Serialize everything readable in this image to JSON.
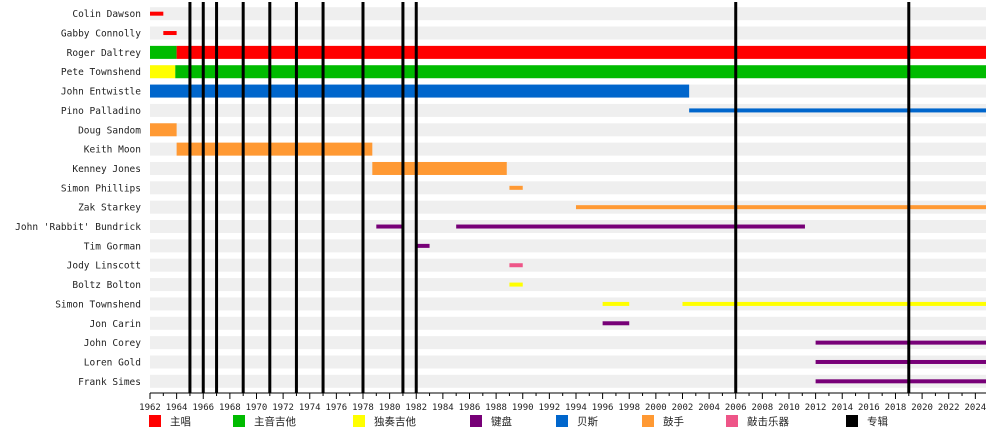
{
  "chart_data": {
    "type": "timeline",
    "x_range": [
      1962,
      2024.8
    ],
    "tick_years": [
      1962,
      1964,
      1966,
      1968,
      1970,
      1972,
      1974,
      1976,
      1978,
      1980,
      1982,
      1984,
      1986,
      1988,
      1990,
      1992,
      1994,
      1996,
      1998,
      2000,
      2002,
      2004,
      2006,
      2008,
      2010,
      2012,
      2014,
      2016,
      2018,
      2020,
      2022,
      2024
    ],
    "role_colors": {
      "lead_vocals": "#ff0000",
      "rhythm_guitar": "#00bb00",
      "lead_guitar": "#ffff00",
      "keyboards": "#770077",
      "bass": "#0066cc",
      "drums": "#ff9933",
      "percussion": "#ee5588",
      "albums": "#000000"
    },
    "legend": [
      {
        "role": "lead_vocals",
        "label": "主唱"
      },
      {
        "role": "rhythm_guitar",
        "label": "主音吉他"
      },
      {
        "role": "lead_guitar",
        "label": "独奏吉他"
      },
      {
        "role": "keyboards",
        "label": "键盘"
      },
      {
        "role": "bass",
        "label": "贝斯"
      },
      {
        "role": "drums",
        "label": "鼓手"
      },
      {
        "role": "percussion",
        "label": "敲击乐器"
      },
      {
        "role": "albums",
        "label": "专辑"
      }
    ],
    "album_years": [
      1965.0,
      1966.0,
      1967.0,
      1969.0,
      1971.0,
      1973.0,
      1975.0,
      1978.0,
      1981.0,
      1982.0,
      2006.0,
      2019.0
    ],
    "members": [
      {
        "name": "Colin Dawson",
        "bars": [
          {
            "start": 1962.0,
            "end": 1963.0,
            "role": "lead_vocals",
            "thick": false
          }
        ]
      },
      {
        "name": "Gabby Connolly",
        "bars": [
          {
            "start": 1963.0,
            "end": 1964.0,
            "role": "lead_vocals",
            "thick": false
          }
        ]
      },
      {
        "name": "Roger Daltrey",
        "bars": [
          {
            "start": 1962.0,
            "end": 1964.0,
            "role": "rhythm_guitar",
            "thick": true
          },
          {
            "start": 1964.0,
            "end": 2024.8,
            "role": "lead_vocals",
            "thick": true
          }
        ]
      },
      {
        "name": "Pete Townshend",
        "bars": [
          {
            "start": 1962.0,
            "end": 1963.9,
            "role": "lead_guitar",
            "thick": true
          },
          {
            "start": 1963.9,
            "end": 2024.8,
            "role": "rhythm_guitar",
            "thick": true
          }
        ]
      },
      {
        "name": "John Entwistle",
        "bars": [
          {
            "start": 1962.0,
            "end": 2002.5,
            "role": "bass",
            "thick": true
          }
        ]
      },
      {
        "name": "Pino Palladino",
        "bars": [
          {
            "start": 2002.5,
            "end": 2024.8,
            "role": "bass",
            "thick": false
          }
        ]
      },
      {
        "name": "Doug Sandom",
        "bars": [
          {
            "start": 1962.0,
            "end": 1964.0,
            "role": "drums",
            "thick": true
          }
        ]
      },
      {
        "name": "Keith Moon",
        "bars": [
          {
            "start": 1964.0,
            "end": 1978.7,
            "role": "drums",
            "thick": true
          }
        ]
      },
      {
        "name": "Kenney Jones",
        "bars": [
          {
            "start": 1978.7,
            "end": 1988.8,
            "role": "drums",
            "thick": true
          }
        ]
      },
      {
        "name": "Simon Phillips",
        "bars": [
          {
            "start": 1989.0,
            "end": 1990.0,
            "role": "drums",
            "thick": false
          }
        ]
      },
      {
        "name": "Zak Starkey",
        "bars": [
          {
            "start": 1994.0,
            "end": 2024.8,
            "role": "drums",
            "thick": false
          }
        ]
      },
      {
        "name": "John 'Rabbit' Bundrick",
        "bars": [
          {
            "start": 1979.0,
            "end": 1981.0,
            "role": "keyboards",
            "thick": false
          },
          {
            "start": 1985.0,
            "end": 2011.2,
            "role": "keyboards",
            "thick": false
          }
        ]
      },
      {
        "name": "Tim Gorman",
        "bars": [
          {
            "start": 1982.0,
            "end": 1983.0,
            "role": "keyboards",
            "thick": false
          }
        ]
      },
      {
        "name": "Jody Linscott",
        "bars": [
          {
            "start": 1989.0,
            "end": 1990.0,
            "role": "percussion",
            "thick": false
          }
        ]
      },
      {
        "name": "Boltz Bolton",
        "bars": [
          {
            "start": 1989.0,
            "end": 1990.0,
            "role": "lead_guitar",
            "thick": false
          }
        ]
      },
      {
        "name": "Simon Townshend",
        "bars": [
          {
            "start": 1996.0,
            "end": 1998.0,
            "role": "lead_guitar",
            "thick": false
          },
          {
            "start": 2002.0,
            "end": 2024.8,
            "role": "lead_guitar",
            "thick": false
          }
        ]
      },
      {
        "name": "Jon Carin",
        "bars": [
          {
            "start": 1996.0,
            "end": 1998.0,
            "role": "keyboards",
            "thick": false
          }
        ]
      },
      {
        "name": "John Corey",
        "bars": [
          {
            "start": 2012.0,
            "end": 2024.8,
            "role": "keyboards",
            "thick": false
          }
        ]
      },
      {
        "name": "Loren Gold",
        "bars": [
          {
            "start": 2012.0,
            "end": 2024.8,
            "role": "keyboards",
            "thick": false
          }
        ]
      },
      {
        "name": "Frank Simes",
        "bars": [
          {
            "start": 2012.0,
            "end": 2024.8,
            "role": "keyboards",
            "thick": false
          }
        ]
      }
    ]
  }
}
